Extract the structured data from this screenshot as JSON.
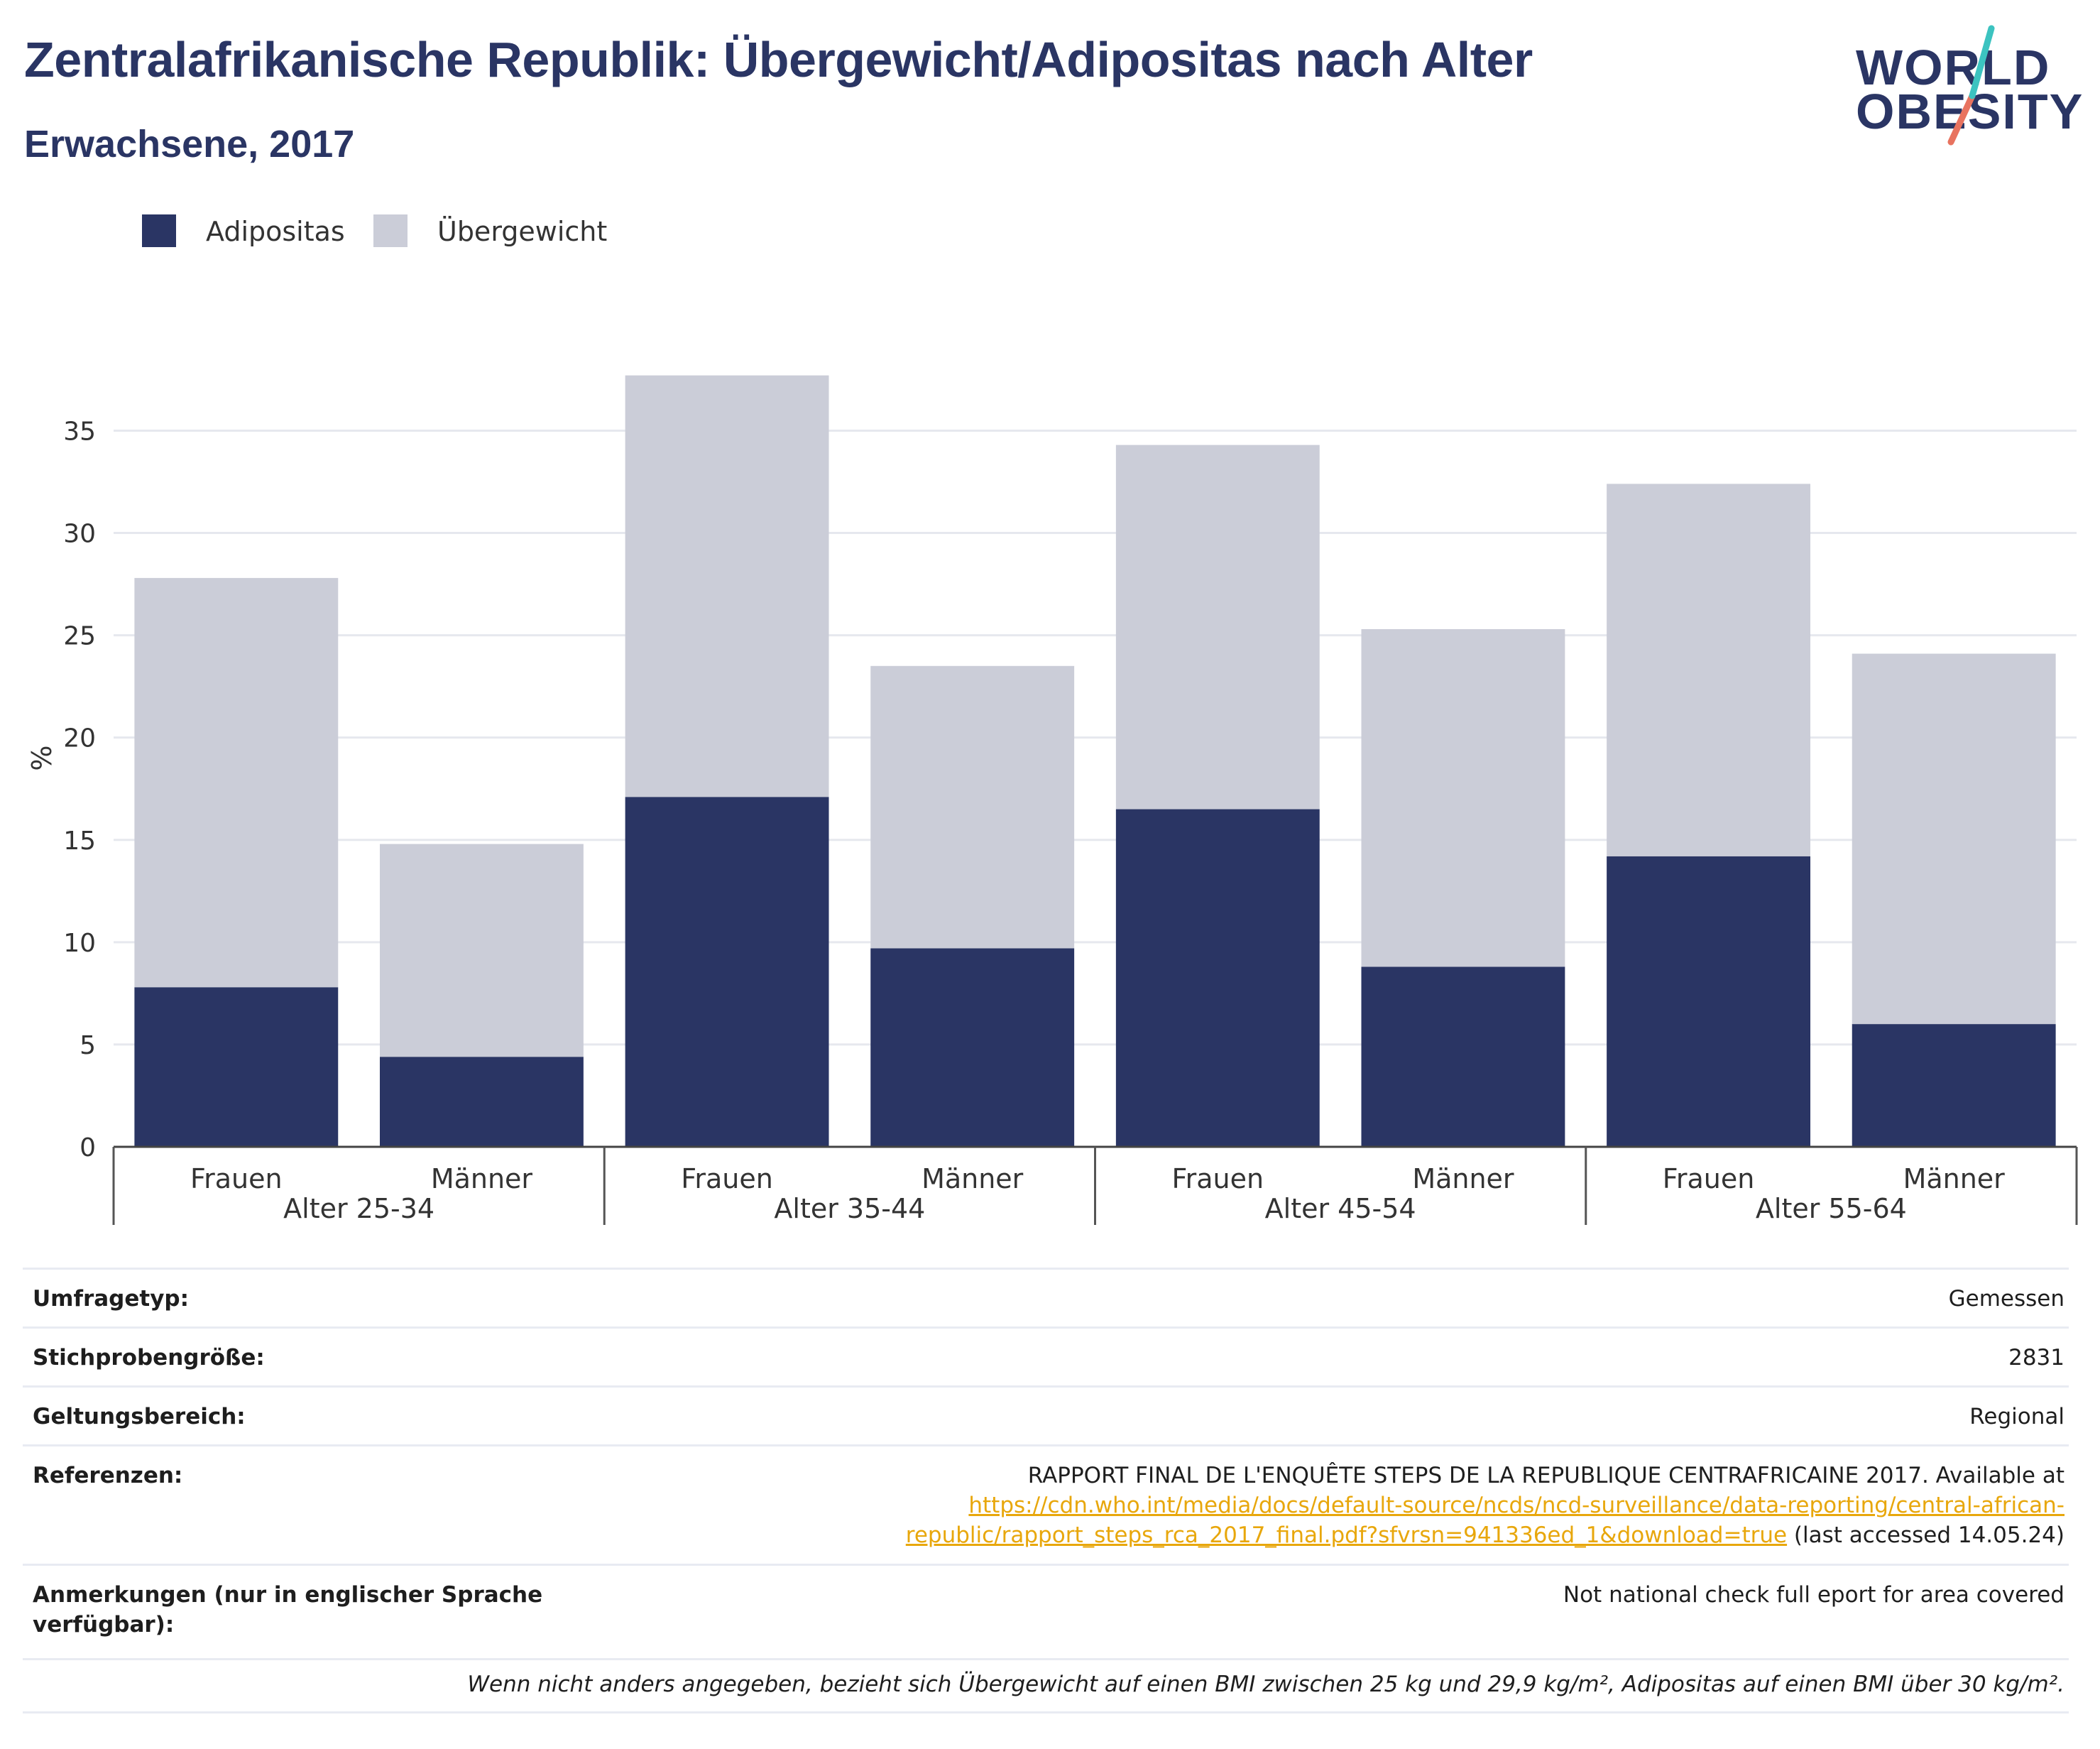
{
  "header": {
    "title": "Zentralafrikanische Republik: Übergewicht/Adipositas nach Alter",
    "subtitle": "Erwachsene, 2017"
  },
  "logo": {
    "line1": "WORLD",
    "line2": "OBESITY"
  },
  "legend": [
    {
      "label": "Adipositas",
      "color": "#2a3564"
    },
    {
      "label": "Übergewicht",
      "color": "#cbcdd8"
    }
  ],
  "chart_data": {
    "type": "bar",
    "stacked": true,
    "ylabel": "%",
    "ylim": [
      0,
      38
    ],
    "yticks": [
      0,
      5,
      10,
      15,
      20,
      25,
      30,
      35
    ],
    "grid": true,
    "legend_position": "top-left",
    "groups": [
      "Alter 25-34",
      "Alter 35-44",
      "Alter 45-54",
      "Alter 55-64"
    ],
    "categories": [
      "Frauen",
      "Männer",
      "Frauen",
      "Männer",
      "Frauen",
      "Männer",
      "Frauen",
      "Männer"
    ],
    "series": [
      {
        "name": "Adipositas",
        "color": "#2a3564",
        "values": [
          7.8,
          4.4,
          17.1,
          9.7,
          16.5,
          8.8,
          14.2,
          6.0
        ]
      },
      {
        "name": "Übergewicht",
        "color": "#cbcdd8",
        "values": [
          20.0,
          10.4,
          20.6,
          13.8,
          17.8,
          16.5,
          18.2,
          18.1
        ]
      }
    ]
  },
  "info": {
    "survey_type": {
      "label": "Umfragetyp:",
      "value": "Gemessen"
    },
    "sample_size": {
      "label": "Stichprobengröße:",
      "value": "2831"
    },
    "coverage": {
      "label": "Geltungsbereich:",
      "value": "Regional"
    },
    "references": {
      "label": "Referenzen:",
      "text": "RAPPORT FINAL DE L'ENQUÊTE STEPS DE LA REPUBLIQUE CENTRAFRICAINE 2017. Available at",
      "link_line1": "https://cdn.who.int/media/docs/default-source/ncds/ncd-surveillance/data-reporting/central-african-",
      "link_line2": "republic/rapport_steps_rca_2017_final.pdf?sfvrsn=941336ed_1&download=true",
      "suffix": " (last accessed 14.05.24)"
    },
    "notes": {
      "label_line1": "Anmerkungen (nur in englischer Sprache",
      "label_line2": "verfügbar):",
      "value": "Not national check full eport for area covered"
    }
  },
  "footnote": "Wenn nicht anders angegeben, bezieht sich Übergewicht auf einen BMI zwischen 25 kg und 29,9 kg/m², Adipositas auf einen BMI über 30 kg/m²."
}
